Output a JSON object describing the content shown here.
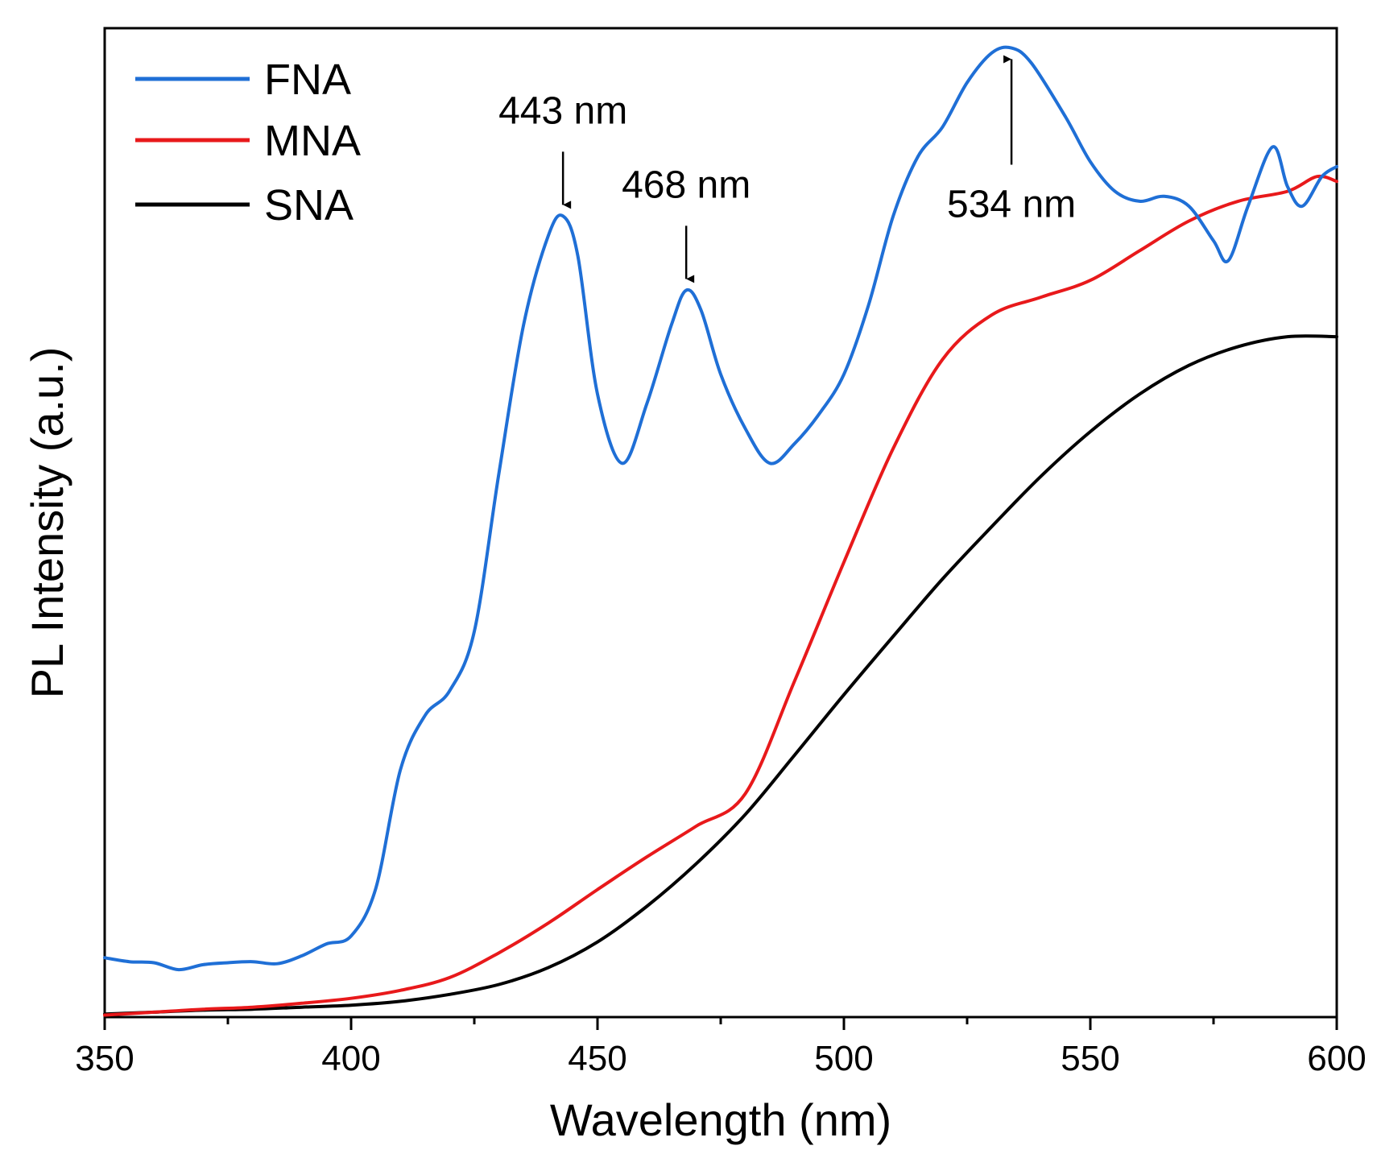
{
  "chart_data": {
    "type": "line",
    "title": "",
    "xlabel": "Wavelength (nm)",
    "ylabel": "PL Intensity (a.u.)",
    "xlim": [
      350,
      600
    ],
    "ylim": [
      0,
      100
    ],
    "xticks": [
      350,
      400,
      450,
      500,
      550,
      600
    ],
    "xtick_labels": [
      "350",
      "400",
      "450",
      "500",
      "550",
      "600"
    ],
    "y_ticks_shown": false,
    "grid": false,
    "legend_position": "top-left",
    "series": [
      {
        "name": "FNA",
        "color": "#1f6fd6",
        "points": [
          [
            350,
            6.0
          ],
          [
            355,
            5.6
          ],
          [
            360,
            5.5
          ],
          [
            365,
            4.8
          ],
          [
            370,
            5.3
          ],
          [
            375,
            5.5
          ],
          [
            380,
            5.6
          ],
          [
            385,
            5.4
          ],
          [
            390,
            6.2
          ],
          [
            395,
            7.4
          ],
          [
            400,
            8.2
          ],
          [
            405,
            13.0
          ],
          [
            410,
            25.0
          ],
          [
            415,
            30.5
          ],
          [
            420,
            33.0
          ],
          [
            425,
            39.0
          ],
          [
            430,
            55.0
          ],
          [
            435,
            70.0
          ],
          [
            440,
            79.0
          ],
          [
            443,
            81.0
          ],
          [
            446,
            77.0
          ],
          [
            450,
            63.0
          ],
          [
            455,
            56.0
          ],
          [
            460,
            62.0
          ],
          [
            465,
            70.0
          ],
          [
            468,
            73.5
          ],
          [
            471,
            71.5
          ],
          [
            475,
            65.0
          ],
          [
            480,
            59.5
          ],
          [
            485,
            56.0
          ],
          [
            490,
            58.0
          ],
          [
            495,
            61.0
          ],
          [
            500,
            65.0
          ],
          [
            505,
            72.0
          ],
          [
            510,
            81.0
          ],
          [
            515,
            87.0
          ],
          [
            520,
            90.0
          ],
          [
            525,
            94.5
          ],
          [
            530,
            97.5
          ],
          [
            534,
            98.0
          ],
          [
            538,
            96.5
          ],
          [
            545,
            91.0
          ],
          [
            550,
            86.5
          ],
          [
            555,
            83.5
          ],
          [
            560,
            82.5
          ],
          [
            565,
            83.0
          ],
          [
            570,
            82.0
          ],
          [
            575,
            78.5
          ],
          [
            578,
            76.5
          ],
          [
            582,
            82.0
          ],
          [
            587,
            88.0
          ],
          [
            590,
            84.0
          ],
          [
            593,
            82.0
          ],
          [
            597,
            85.0
          ],
          [
            600,
            86.0
          ]
        ]
      },
      {
        "name": "MNA",
        "color": "#e8191b",
        "points": [
          [
            350,
            0.2
          ],
          [
            360,
            0.5
          ],
          [
            370,
            0.8
          ],
          [
            380,
            1.0
          ],
          [
            390,
            1.4
          ],
          [
            400,
            1.9
          ],
          [
            410,
            2.7
          ],
          [
            420,
            4.0
          ],
          [
            430,
            6.5
          ],
          [
            440,
            9.5
          ],
          [
            450,
            12.9
          ],
          [
            460,
            16.2
          ],
          [
            470,
            19.3
          ],
          [
            480,
            22.6
          ],
          [
            490,
            34.0
          ],
          [
            500,
            46.0
          ],
          [
            510,
            57.5
          ],
          [
            520,
            66.5
          ],
          [
            530,
            71.0
          ],
          [
            540,
            72.8
          ],
          [
            550,
            74.5
          ],
          [
            560,
            77.5
          ],
          [
            570,
            80.5
          ],
          [
            580,
            82.5
          ],
          [
            590,
            83.5
          ],
          [
            596,
            85.0
          ],
          [
            600,
            84.5
          ]
        ]
      },
      {
        "name": "SNA",
        "color": "#000000",
        "points": [
          [
            350,
            0.3
          ],
          [
            360,
            0.5
          ],
          [
            370,
            0.7
          ],
          [
            380,
            0.8
          ],
          [
            390,
            1.0
          ],
          [
            400,
            1.2
          ],
          [
            410,
            1.6
          ],
          [
            420,
            2.3
          ],
          [
            430,
            3.3
          ],
          [
            440,
            5.0
          ],
          [
            450,
            7.6
          ],
          [
            460,
            11.2
          ],
          [
            470,
            15.5
          ],
          [
            480,
            20.5
          ],
          [
            490,
            26.5
          ],
          [
            500,
            32.6
          ],
          [
            510,
            38.5
          ],
          [
            520,
            44.3
          ],
          [
            530,
            49.6
          ],
          [
            540,
            54.7
          ],
          [
            550,
            59.2
          ],
          [
            560,
            63.0
          ],
          [
            570,
            65.9
          ],
          [
            580,
            67.8
          ],
          [
            590,
            68.8
          ],
          [
            600,
            68.8
          ]
        ]
      }
    ],
    "annotations": [
      {
        "text": "443 nm",
        "x": 443,
        "y": 81.0,
        "direction": "down"
      },
      {
        "text": "468 nm",
        "x": 468,
        "y": 73.5,
        "direction": "down"
      },
      {
        "text": "534 nm",
        "x": 534,
        "y": 98.0,
        "direction": "up"
      }
    ]
  }
}
